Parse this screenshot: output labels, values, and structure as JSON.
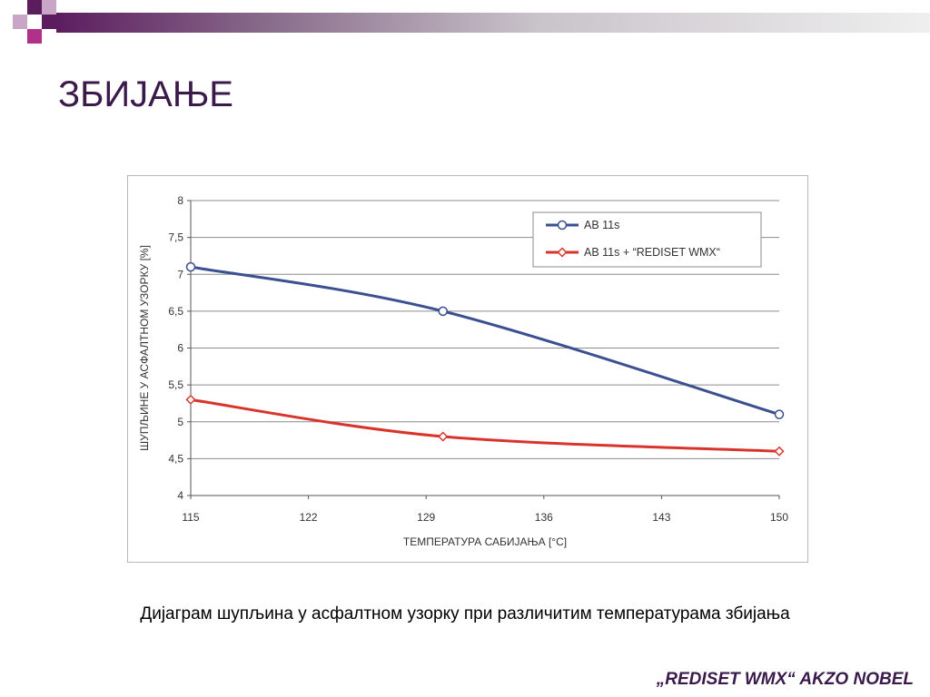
{
  "slide": {
    "title": "ЗБИЈАЊЕ",
    "caption": "Дијаграм шупљина у асфалтном узорку при различитим температурама збијања",
    "footer": "„REDISET WMX“  AKZO NOBEL"
  },
  "colors": {
    "accent_purple": "#5c1d5f",
    "deco_magenta": "#b0308a",
    "series_blue": "#3b4f91",
    "series_red": "#d9342b",
    "grid": "#8c8c8c"
  },
  "chart_data": {
    "type": "line",
    "xlabel": "ТЕМПЕРАТУРА САБИЈАЊА [°C]",
    "ylabel": "ШУПЉИНЕ У АСФАЛТНОМ УЗОРКУ [%]",
    "x": [
      115,
      130,
      150
    ],
    "x_ticks": [
      "115",
      "122",
      "129",
      "136",
      "143",
      "150"
    ],
    "y_ticks": [
      "4",
      "4,5",
      "5",
      "5,5",
      "6",
      "6,5",
      "7",
      "7,5",
      "8"
    ],
    "xlim": [
      115,
      150
    ],
    "ylim": [
      4,
      8
    ],
    "grid": "horizontal",
    "legend_position": "top-right",
    "series": [
      {
        "name": "AB 11s",
        "values": [
          7.1,
          6.5,
          5.1
        ],
        "color": "#3b4f91",
        "marker": "circle"
      },
      {
        "name": "AB 11s +  “REDISET WMX“",
        "values": [
          5.3,
          4.8,
          4.6
        ],
        "color": "#d9342b",
        "marker": "diamond"
      }
    ]
  }
}
